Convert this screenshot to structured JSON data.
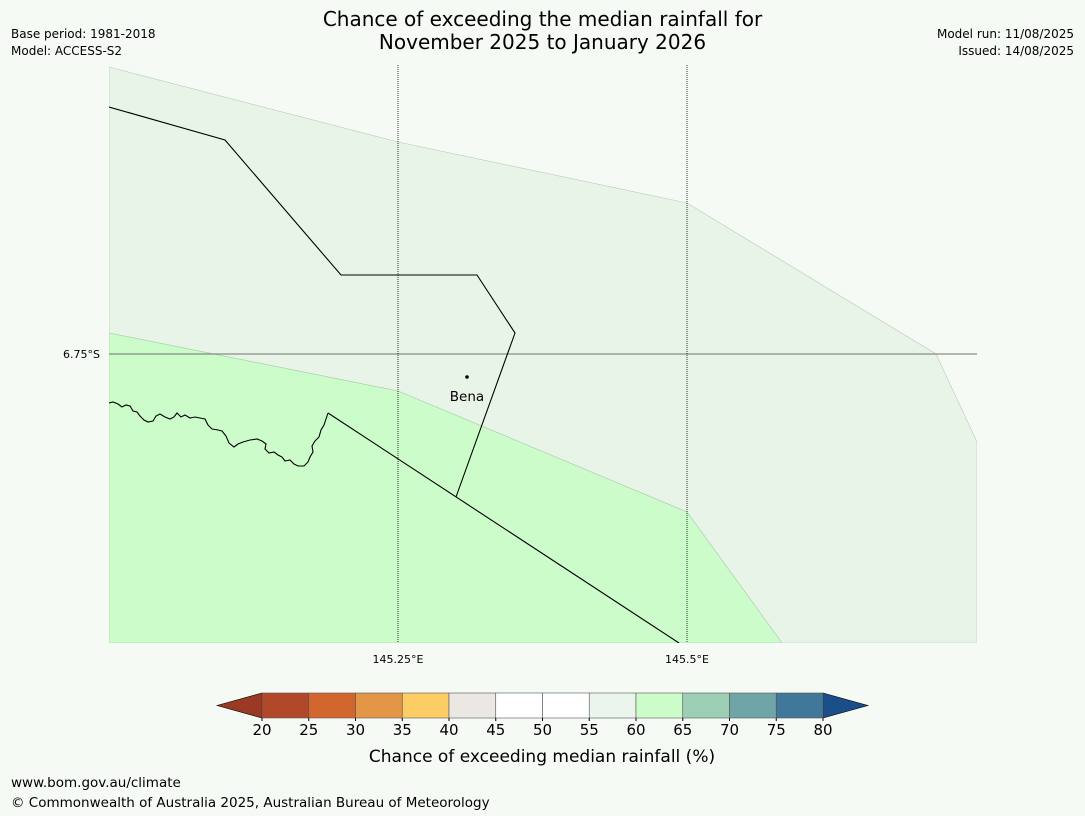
{
  "header": {
    "title_line1": "Chance of exceeding the median rainfall for",
    "title_line2": "November 2025 to January 2026",
    "base_period": "Base period: 1981-2018",
    "model": "Model: ACCESS-S2",
    "model_run": "Model run: 11/08/2025",
    "issued": "Issued: 14/08/2025"
  },
  "map": {
    "lat_label": "6.75°S",
    "lon_labels": [
      "145.25°E",
      "145.5°E"
    ],
    "place_label": "Bena",
    "fill_colors": {
      "zone_55_60": "#e9f4e9",
      "zone_60_65": "#ccfcca"
    }
  },
  "colorbar": {
    "ticks": [
      "20",
      "25",
      "30",
      "35",
      "40",
      "45",
      "50",
      "55",
      "60",
      "65",
      "70",
      "75",
      "80"
    ],
    "colors": [
      "#b1482a",
      "#d2662f",
      "#e49647",
      "#fdcd65",
      "#ebe8e4",
      "#ffffff",
      "#ffffff",
      "#ebf5eb",
      "#ccfcca",
      "#9dcfb7",
      "#70a5a8",
      "#3f7899"
    ],
    "low_extend_color": "#9b3a24",
    "high_extend_color": "#1a4e88",
    "label": "Chance of exceeding median rainfall (%)"
  },
  "footer": {
    "url": "www.bom.gov.au/climate",
    "copyright": "© Commonwealth of Australia 2025, Australian Bureau of Meteorology"
  }
}
